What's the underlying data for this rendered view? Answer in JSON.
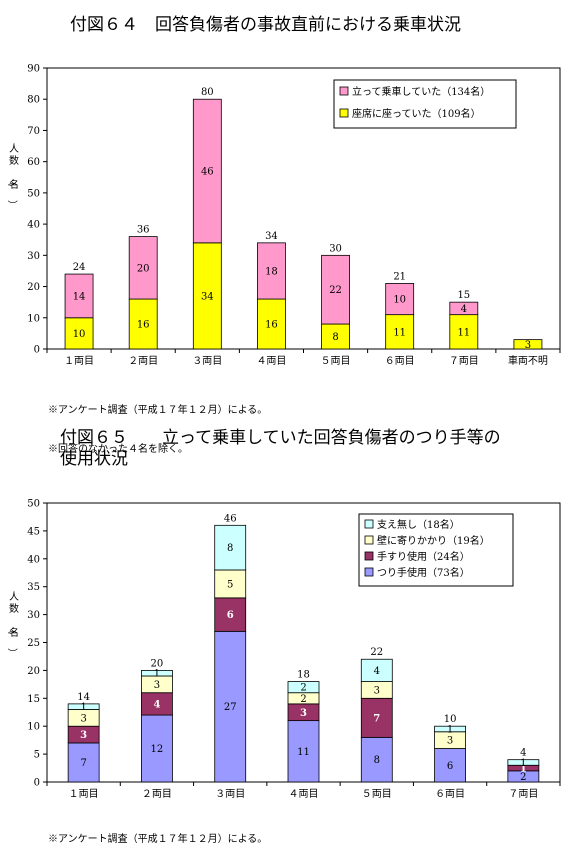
{
  "charts": [
    {
      "title": "付図６４　回答負傷者の事故直前における乗車状況",
      "notes": [
        "※アンケート調査（平成１７年１２月）による。",
        "※回答のなかった４名を除く。"
      ],
      "chart_data": {
        "type": "bar",
        "stacked": true,
        "categories": [
          "１両目",
          "２両目",
          "３両目",
          "４両目",
          "５両目",
          "６両目",
          "７両目",
          "車両不明"
        ],
        "ylabel": "人数（名）",
        "ylim": [
          0,
          90
        ],
        "yticks": [
          0,
          10,
          20,
          30,
          40,
          50,
          60,
          70,
          80,
          90
        ],
        "grid": false,
        "legend_position": "top-right",
        "legend_order": [
          0,
          1
        ],
        "series": [
          {
            "name": "座席に座っていた（109名）",
            "color": "#ffff00",
            "values": [
              10,
              16,
              34,
              16,
              8,
              11,
              11,
              3
            ]
          },
          {
            "name": "立って乗車していた（134名）",
            "color": "#ff99cc",
            "values": [
              14,
              20,
              46,
              18,
              22,
              10,
              4,
              0
            ]
          }
        ],
        "totals": [
          24,
          36,
          80,
          34,
          30,
          21,
          15,
          null
        ]
      }
    },
    {
      "title": "付図６５　　立って乗車していた回答負傷者のつり手等の\n使用状況",
      "notes": [
        "※アンケート調査（平成１７年１２月）による。"
      ],
      "chart_data": {
        "type": "bar",
        "stacked": true,
        "categories": [
          "１両目",
          "２両目",
          "３両目",
          "４両目",
          "５両目",
          "６両目",
          "７両目"
        ],
        "ylabel": "人数（名）",
        "ylim": [
          0,
          50
        ],
        "yticks": [
          0,
          5,
          10,
          15,
          20,
          25,
          30,
          35,
          40,
          45,
          50
        ],
        "grid": false,
        "legend_position": "top-right",
        "legend_order": [
          0,
          1,
          2,
          3
        ],
        "series": [
          {
            "name": "つり手使用（73名）",
            "color": "#9999ff",
            "values": [
              7,
              12,
              27,
              11,
              8,
              6,
              2
            ]
          },
          {
            "name": "手すり使用（24名）",
            "color": "#993366",
            "values": [
              3,
              4,
              6,
              3,
              7,
              0,
              1
            ]
          },
          {
            "name": "壁に寄りかかり（19名）",
            "color": "#ffffcc",
            "values": [
              3,
              3,
              5,
              2,
              3,
              3,
              0
            ]
          },
          {
            "name": "支え無し（18名）",
            "color": "#ccffff",
            "values": [
              1,
              1,
              8,
              2,
              4,
              1,
              1
            ]
          }
        ],
        "totals": [
          14,
          20,
          46,
          18,
          22,
          10,
          4
        ]
      }
    }
  ]
}
